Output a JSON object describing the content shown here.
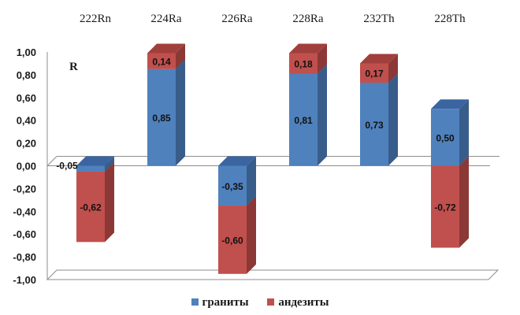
{
  "chart_data": {
    "type": "bar",
    "stacked": true,
    "three_d": true,
    "annotation": "R",
    "categories": [
      "222Rn",
      "224Ra",
      "226Ra",
      "228Ra",
      "232Th",
      "228Th"
    ],
    "series": [
      {
        "name": "граниты",
        "values": [
          -0.05,
          0.85,
          -0.35,
          0.81,
          0.73,
          0.5
        ],
        "labels": [
          "-0,05",
          "0,85",
          "-0,35",
          "0,81",
          "0,73",
          "0,50"
        ]
      },
      {
        "name": "андезиты",
        "values": [
          -0.62,
          0.14,
          -0.6,
          0.18,
          0.17,
          -0.72
        ],
        "labels": [
          "-0,62",
          "0,14",
          "-0,60",
          "0,18",
          "0,17",
          "-0,72"
        ]
      }
    ],
    "yticks": [
      "1,00",
      "0,80",
      "0,60",
      "0,40",
      "0,20",
      "0,00",
      "-0,20",
      "-0,40",
      "-0,60",
      "-0,80",
      "-1,00"
    ],
    "ylim": [
      -1.0,
      1.0
    ],
    "grid": false,
    "legend_position": "bottom",
    "colors": {
      "granity_front": "#4f81bd",
      "granity_side": "#385d8a",
      "granity_top": "#3a65a0",
      "andezity_front": "#c0504d",
      "andezity_side": "#8c3836",
      "andezity_top": "#a03f3c",
      "axis": "#8c8c8c"
    }
  }
}
